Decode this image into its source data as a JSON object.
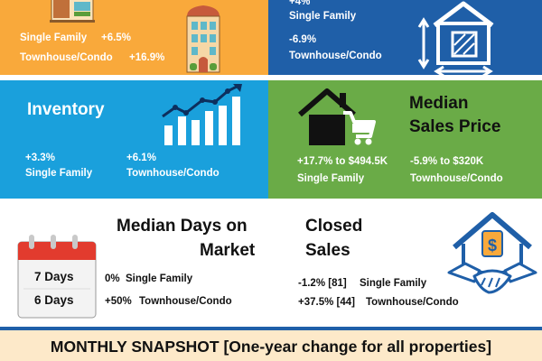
{
  "top_left": {
    "single_family": "Single Family",
    "single_family_change": "+6.5%",
    "townhouse": "Townhouse/Condo",
    "townhouse_change": "+16.9%"
  },
  "top_right": {
    "single_family_change": "+4%",
    "single_family": "Single Family",
    "townhouse_change": "-6.9%",
    "townhouse": "Townhouse/Condo"
  },
  "inventory": {
    "title": "Inventory",
    "single_family_change": "+3.3%",
    "single_family": "Single Family",
    "townhouse_change": "+6.1%",
    "townhouse": "Townhouse/Condo"
  },
  "median_sales_price": {
    "title_line1": "Median",
    "title_line2": "Sales Price",
    "single_family_value": "+17.7% to $494.5K",
    "single_family": "Single Family",
    "townhouse_value": "-5.9% to $320K",
    "townhouse": "Townhouse/Condo"
  },
  "median_days": {
    "title_line1": "Median Days on",
    "title_line2": "Market",
    "single_family_days": "7 Days",
    "townhouse_days": "6 Days",
    "single_family_change": "0%",
    "single_family": "Single Family",
    "townhouse_change": "+50%",
    "townhouse": "Townhouse/Condo"
  },
  "closed_sales": {
    "title_line1": "Closed",
    "title_line2": "Sales",
    "single_family_change": "-1.2% [81]",
    "single_family": "Single Family",
    "townhouse_change": "+37.5% [44]",
    "townhouse": "Townhouse/Condo"
  },
  "footer": {
    "text": "MONTHLY SNAPSHOT [One-year change for all properties]"
  },
  "colors": {
    "orange": "#f9a93b",
    "blue": "#1f5fa8",
    "cyan": "#1aa0dc",
    "green": "#6aab47",
    "footer_bg": "#fde9c9",
    "calendar_red": "#e23b2e"
  },
  "icons": [
    "storefront-icon",
    "apartment-building-icon",
    "house-square-footage-icon",
    "bar-chart-growth-icon",
    "house-cart-icon",
    "calendar-icon",
    "house-dollar-handshake-icon"
  ]
}
